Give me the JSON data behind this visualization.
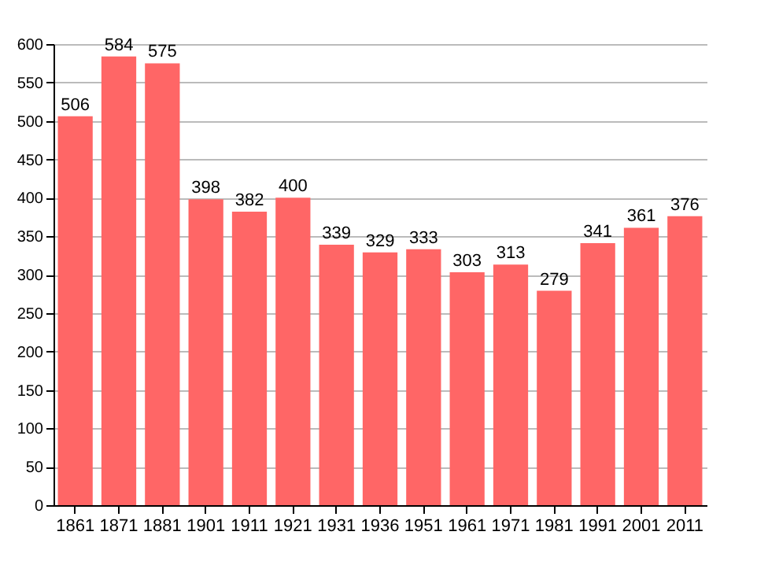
{
  "chart_data": {
    "type": "bar",
    "categories": [
      "1861",
      "1871",
      "1881",
      "1901",
      "1911",
      "1921",
      "1931",
      "1936",
      "1951",
      "1961",
      "1971",
      "1981",
      "1991",
      "2001",
      "2011"
    ],
    "values": [
      506,
      584,
      575,
      398,
      382,
      400,
      339,
      329,
      333,
      303,
      313,
      279,
      341,
      361,
      376
    ],
    "color": "#ff6666",
    "ylim": [
      0,
      600
    ],
    "yticks": [
      0,
      50,
      100,
      150,
      200,
      250,
      300,
      350,
      400,
      450,
      500,
      550,
      600
    ],
    "grid": "y",
    "data_labels": true
  }
}
